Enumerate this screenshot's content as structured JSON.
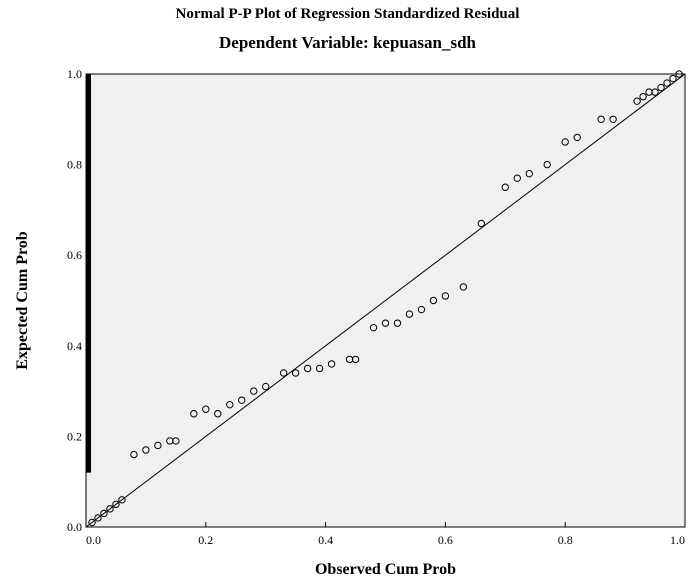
{
  "chart_data": {
    "type": "scatter",
    "title": "Normal P-P Plot of Regression Standardized Residual",
    "subtitle": "Dependent Variable: kepuasan_sdh",
    "xlabel": "Observed Cum Prob",
    "ylabel": "Expected Cum Prob",
    "xlim": [
      0,
      1
    ],
    "ylim": [
      0,
      1
    ],
    "xticks": [
      "0.0",
      "0.2",
      "0.4",
      "0.6",
      "0.8",
      "1.0"
    ],
    "yticks": [
      "0.0",
      "0.2",
      "0.4",
      "0.6",
      "0.8",
      "1.0"
    ],
    "grid": false,
    "reference_line": [
      [
        0,
        0
      ],
      [
        1,
        1
      ]
    ],
    "points": [
      [
        0.01,
        0.01
      ],
      [
        0.02,
        0.02
      ],
      [
        0.03,
        0.03
      ],
      [
        0.04,
        0.04
      ],
      [
        0.05,
        0.05
      ],
      [
        0.06,
        0.06
      ],
      [
        0.08,
        0.16
      ],
      [
        0.1,
        0.17
      ],
      [
        0.12,
        0.18
      ],
      [
        0.14,
        0.19
      ],
      [
        0.15,
        0.19
      ],
      [
        0.18,
        0.25
      ],
      [
        0.2,
        0.26
      ],
      [
        0.22,
        0.25
      ],
      [
        0.24,
        0.27
      ],
      [
        0.26,
        0.28
      ],
      [
        0.28,
        0.3
      ],
      [
        0.3,
        0.31
      ],
      [
        0.33,
        0.34
      ],
      [
        0.35,
        0.34
      ],
      [
        0.37,
        0.35
      ],
      [
        0.39,
        0.35
      ],
      [
        0.41,
        0.36
      ],
      [
        0.44,
        0.37
      ],
      [
        0.45,
        0.37
      ],
      [
        0.48,
        0.44
      ],
      [
        0.5,
        0.45
      ],
      [
        0.52,
        0.45
      ],
      [
        0.54,
        0.47
      ],
      [
        0.56,
        0.48
      ],
      [
        0.58,
        0.5
      ],
      [
        0.6,
        0.51
      ],
      [
        0.63,
        0.53
      ],
      [
        0.66,
        0.67
      ],
      [
        0.7,
        0.75
      ],
      [
        0.72,
        0.77
      ],
      [
        0.74,
        0.78
      ],
      [
        0.77,
        0.8
      ],
      [
        0.8,
        0.85
      ],
      [
        0.82,
        0.86
      ],
      [
        0.86,
        0.9
      ],
      [
        0.88,
        0.9
      ],
      [
        0.92,
        0.94
      ],
      [
        0.93,
        0.95
      ],
      [
        0.94,
        0.96
      ],
      [
        0.95,
        0.96
      ],
      [
        0.96,
        0.97
      ],
      [
        0.97,
        0.98
      ],
      [
        0.98,
        0.99
      ],
      [
        0.99,
        1.0
      ]
    ]
  }
}
